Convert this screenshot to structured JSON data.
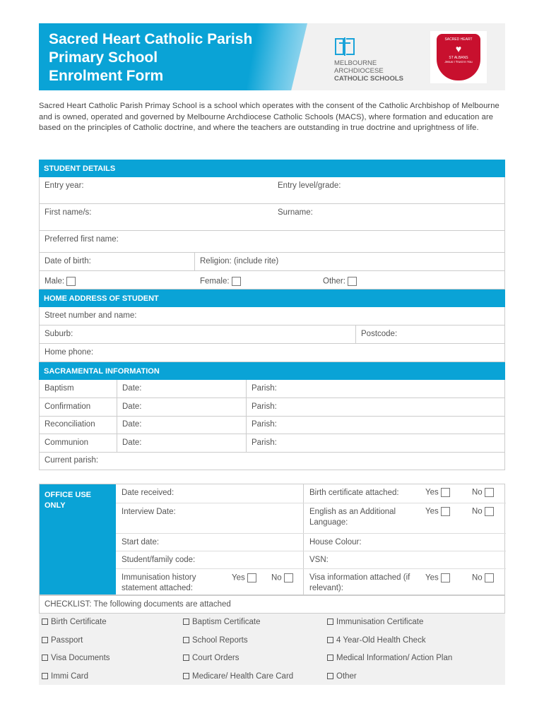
{
  "header": {
    "title_lines": [
      "Sacred Heart Catholic Parish",
      "Primary School",
      "Enrolment Form"
    ],
    "macs_logo": [
      "MELBOURNE",
      "ARCHDIOCESE",
      "CATHOLIC SCHOOLS"
    ],
    "crest_text": [
      "SACRED HEART",
      "ST ALBANS",
      "Jesus I Trust In You"
    ]
  },
  "intro": "Sacred Heart Catholic Parish Primay School is a school which operates with the consent of the Catholic Archbishop of Melbourne and is owned, operated and governed by Melbourne Archdiocese Catholic Schools (MACS), where formation and education are based on the principles of Catholic doctrine, and where the teachers are outstanding in true doctrine and uprightness of life.",
  "student": {
    "heading": "STUDENT DETAILS",
    "entry_year": "Entry year:",
    "entry_level": "Entry level/grade:",
    "first_name": "First name/s:",
    "surname": "Surname:",
    "preferred": "Preferred first name:",
    "dob": "Date of birth:",
    "religion": "Religion: (include rite)",
    "male": "Male:",
    "female": "Female:",
    "other": "Other:"
  },
  "address": {
    "heading": "HOME ADDRESS OF STUDENT",
    "street": "Street number and name:",
    "suburb": "Suburb:",
    "postcode": "Postcode:",
    "phone": "Home phone:"
  },
  "sacramental": {
    "heading": "SACRAMENTAL INFORMATION",
    "date": "Date:",
    "parish": "Parish:",
    "rows": [
      "Baptism",
      "Confirmation",
      "Reconciliation",
      "Communion"
    ],
    "current_parish": "Current parish:"
  },
  "office": {
    "label": "OFFICE USE ONLY",
    "yes": "Yes",
    "no": "No",
    "date_received": "Date received:",
    "birth_cert": "Birth certificate attached:",
    "interview": "Interview Date:",
    "eal": "English as an Additional Language:",
    "start": "Start date:",
    "house": "House Colour:",
    "code": "Student/family code:",
    "vsn": "VSN:",
    "immunisation": "Immunisation history statement attached:",
    "visa": "Visa information attached (if relevant):"
  },
  "checklist": {
    "heading": "CHECKLIST: The following documents are attached",
    "items": [
      "Birth Certificate",
      "Baptism Certificate",
      "Immunisation Certificate",
      "Passport",
      "School Reports",
      "4 Year-Old Health Check",
      "Visa Documents",
      "Court Orders",
      "Medical Information/ Action Plan",
      "Immi Card",
      "Medicare/ Health Care Card",
      "Other"
    ]
  },
  "colors": {
    "accent": "#0aa3d6",
    "crest": "#c8102e"
  }
}
